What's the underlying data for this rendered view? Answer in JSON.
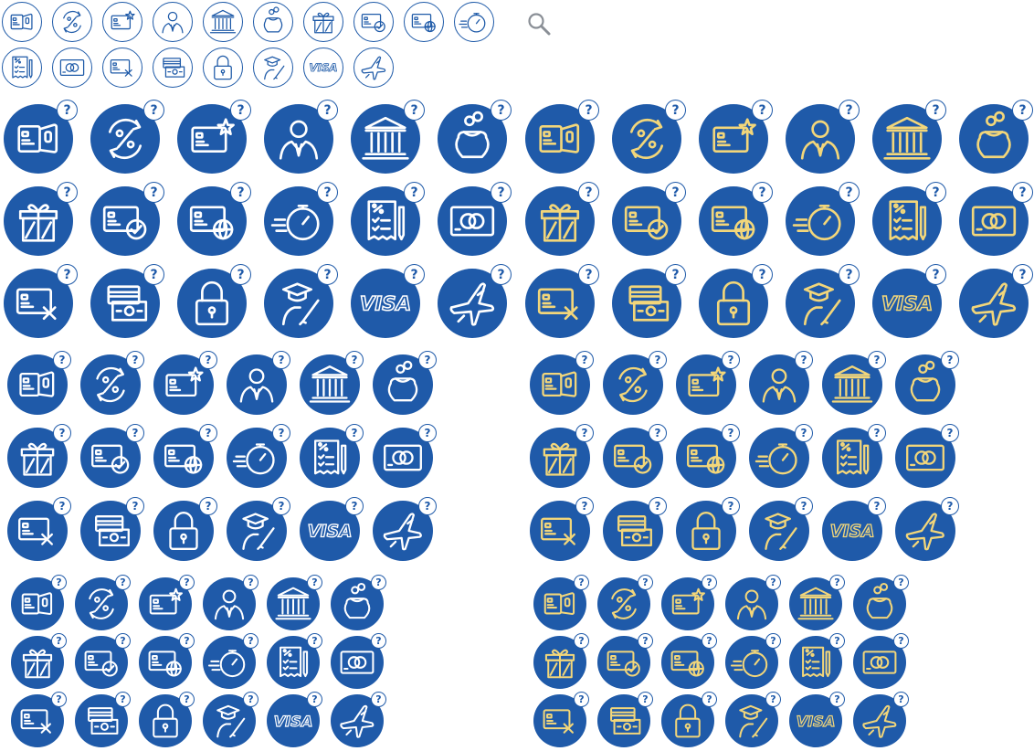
{
  "badge_text": "?",
  "colors": {
    "blue": "#1f5aa9",
    "outline_blue": "#1e5aa8",
    "white": "#ffffff",
    "gold": "#f2d67a"
  },
  "search_icon": "magnifier-icon",
  "icon_set": [
    {
      "name": "card-transfer-icon"
    },
    {
      "name": "percent-cycle-icon"
    },
    {
      "name": "card-star-icon"
    },
    {
      "name": "banker-person-icon"
    },
    {
      "name": "bank-building-icon"
    },
    {
      "name": "coin-purse-icon"
    },
    {
      "name": "gift-box-icon"
    },
    {
      "name": "card-verified-icon"
    },
    {
      "name": "card-globe-icon"
    },
    {
      "name": "fast-stopwatch-icon"
    },
    {
      "name": "tax-receipt-icon"
    },
    {
      "name": "mastercard-icon"
    },
    {
      "name": "card-cancel-icon"
    },
    {
      "name": "cash-card-icon"
    },
    {
      "name": "padlock-icon"
    },
    {
      "name": "graduate-sign-icon"
    },
    {
      "name": "visa-icon",
      "label": "VISA"
    },
    {
      "name": "airplane-icon"
    }
  ]
}
